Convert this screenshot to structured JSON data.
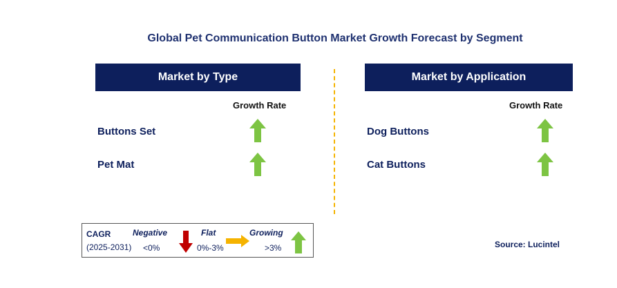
{
  "title": "Global Pet Communication Button Market Growth Forecast by Segment",
  "panels": {
    "type": {
      "header": "Market by Type",
      "growth_label": "Growth Rate",
      "rows": [
        {
          "label": "Buttons Set",
          "trend": "growing"
        },
        {
          "label": "Pet Mat",
          "trend": "growing"
        }
      ]
    },
    "application": {
      "header": "Market by Application",
      "growth_label": "Growth Rate",
      "rows": [
        {
          "label": "Dog Buttons",
          "trend": "growing"
        },
        {
          "label": "Cat Buttons",
          "trend": "growing"
        }
      ]
    }
  },
  "legend": {
    "cagr": "CAGR",
    "period": "(2025-2031)",
    "negative_label": "Negative",
    "negative_range": "<0%",
    "flat_label": "Flat",
    "flat_range": "0%-3%",
    "growing_label": "Growing",
    "growing_range": ">3%"
  },
  "source": "Source: Lucintel",
  "colors": {
    "header_bg": "#0d1f5c",
    "up_arrow": "#7dc443",
    "down_arrow": "#c00000",
    "flat_arrow": "#f5b300",
    "divider": "#f5b300"
  }
}
